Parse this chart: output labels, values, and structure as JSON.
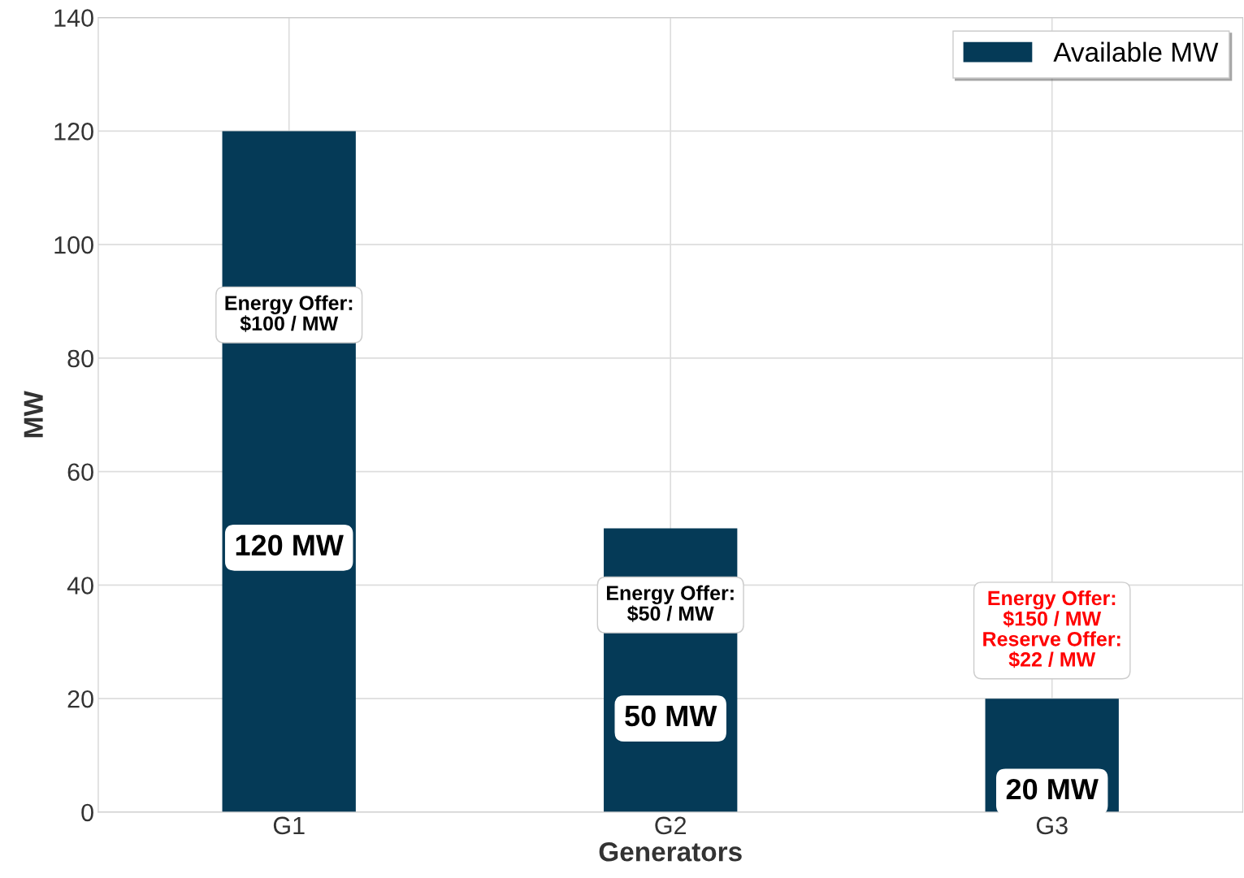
{
  "chart_data": {
    "type": "bar",
    "categories": [
      "G1",
      "G2",
      "G3"
    ],
    "xlabel": "Generators",
    "ylabel": "MW",
    "series": [
      {
        "name": "Available MW",
        "color": "#053a57",
        "values": [
          120,
          50,
          20
        ],
        "value_labels": [
          "120 MW",
          "50 MW",
          "20 MW"
        ]
      }
    ],
    "ylim": [
      0,
      140
    ],
    "yticks": [
      0,
      20,
      40,
      60,
      80,
      100,
      120,
      140
    ],
    "grid": true,
    "legend": "top right",
    "annotations": [
      "Energy Offer:\n$100 / MW",
      "Energy Offer:\n$50 / MW",
      "Energy Offer:\n$150 / MW\nReserve Offer:\n$22 / MW"
    ]
  }
}
